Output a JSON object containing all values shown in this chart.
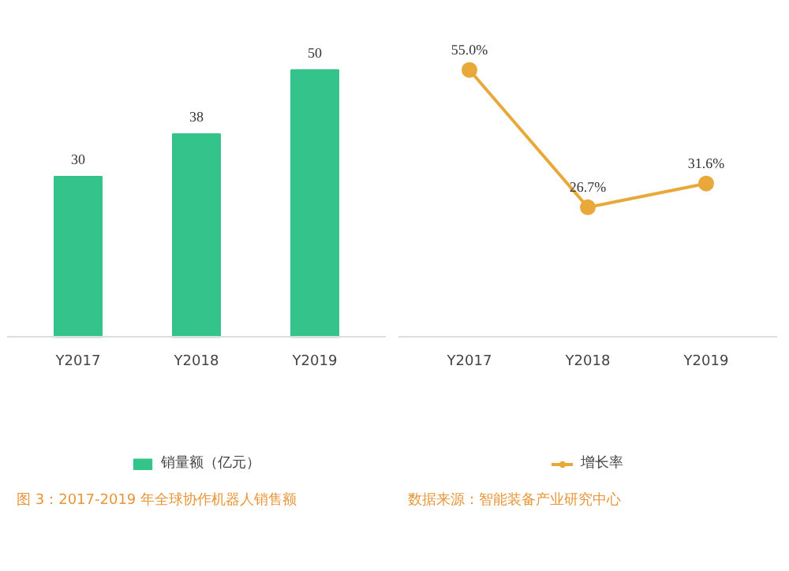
{
  "chart_data": [
    {
      "type": "bar",
      "categories": [
        "Y2017",
        "Y2018",
        "Y2019"
      ],
      "series": [
        {
          "name": "销量额（亿元）",
          "color": "#34c48b",
          "values": [
            30,
            38,
            50
          ]
        }
      ],
      "data_labels": true,
      "legend": "bottom",
      "grid": false,
      "annotations": [
        "图 3：2017-2019 年全球协作机器人销售额"
      ]
    },
    {
      "type": "line",
      "categories": [
        "Y2017",
        "Y2018",
        "Y2019"
      ],
      "series": [
        {
          "name": "增长率",
          "color": "#e8a93a",
          "values": [
            55.0,
            26.7,
            31.6
          ],
          "value_labels": [
            "55.0%",
            "26.7%",
            "31.6%"
          ]
        }
      ],
      "marker": "circle",
      "line_style": "solid",
      "legend": "bottom",
      "grid": false,
      "annotations": [
        "数据来源：智能装备产业研究中心"
      ]
    }
  ]
}
